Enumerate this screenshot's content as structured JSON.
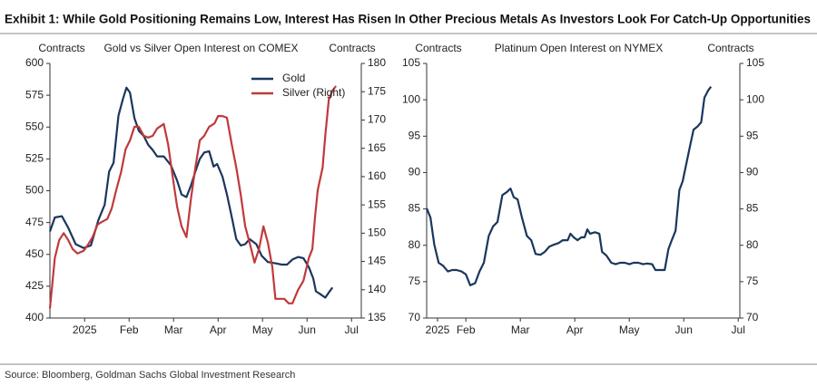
{
  "title": "Exhibit 1: While Gold Positioning Remains Low, Interest Has Risen In Other Precious Metals As Investors Look For Catch-Up Opportunities",
  "source": "Source: Bloomberg, Goldman Sachs Global Investment Research",
  "chart_data": [
    {
      "type": "line",
      "title": "Gold vs Silver Open Interest on COMEX",
      "y_label": "Contracts",
      "y2_label": "Contracts",
      "xlim": [
        -0.78,
        6.22
      ],
      "xticks": [
        {
          "value": 0,
          "label": "2025"
        },
        {
          "value": 1,
          "label": "Feb"
        },
        {
          "value": 2,
          "label": "Mar"
        },
        {
          "value": 3,
          "label": "Apr"
        },
        {
          "value": 4,
          "label": "May"
        },
        {
          "value": 5,
          "label": "Jun"
        },
        {
          "value": 6,
          "label": "Jul"
        }
      ],
      "ylim": [
        400,
        600
      ],
      "yticks": [
        400,
        425,
        450,
        475,
        500,
        525,
        550,
        575,
        600
      ],
      "y2lim": [
        135,
        180
      ],
      "y2ticks": [
        135,
        140,
        145,
        150,
        155,
        160,
        165,
        170,
        175,
        180
      ],
      "legend": "top",
      "series": [
        {
          "name": "Gold",
          "color": "#1b365d",
          "x": [
            -0.78,
            -0.67,
            -0.51,
            -0.37,
            -0.2,
            -0.02,
            0.14,
            0.31,
            0.45,
            0.55,
            0.65,
            0.76,
            0.86,
            0.94,
            1.02,
            1.12,
            1.22,
            1.33,
            1.43,
            1.53,
            1.63,
            1.78,
            1.94,
            2.08,
            2.18,
            2.29,
            2.39,
            2.49,
            2.59,
            2.69,
            2.8,
            2.9,
            2.98,
            3.1,
            3.2,
            3.31,
            3.41,
            3.51,
            3.61,
            3.71,
            3.86,
            3.98,
            4.12,
            4.29,
            4.43,
            4.55,
            4.67,
            4.8,
            4.92,
            5.04,
            5.14,
            5.2,
            5.29,
            5.41,
            5.49,
            5.57
          ],
          "values": [
            468,
            479,
            480,
            471,
            458,
            455,
            457,
            477,
            489,
            515,
            522,
            559,
            572,
            581,
            577,
            557,
            547,
            543,
            536,
            532,
            527,
            527,
            520,
            508,
            497,
            495,
            504,
            515,
            525,
            530,
            531,
            519,
            521,
            511,
            497,
            479,
            462,
            457,
            458,
            462,
            458,
            449,
            444,
            443,
            442,
            442,
            446,
            448,
            447,
            440,
            431,
            421,
            419,
            416,
            420,
            424
          ]
        },
        {
          "name": "Silver (Right)",
          "color": "#c0393b",
          "axis": "y2",
          "x": [
            -0.78,
            -0.67,
            -0.57,
            -0.47,
            -0.37,
            -0.27,
            -0.16,
            -0.02,
            0.08,
            0.18,
            0.29,
            0.39,
            0.51,
            0.61,
            0.71,
            0.82,
            0.92,
            1.02,
            1.12,
            1.22,
            1.33,
            1.43,
            1.53,
            1.63,
            1.78,
            1.88,
            1.98,
            2.08,
            2.18,
            2.29,
            2.39,
            2.49,
            2.59,
            2.69,
            2.8,
            2.92,
            3.0,
            3.1,
            3.2,
            3.31,
            3.41,
            3.51,
            3.61,
            3.71,
            3.82,
            3.92,
            4.02,
            4.12,
            4.22,
            4.29,
            4.39,
            4.49,
            4.59,
            4.67,
            4.8,
            4.92,
            5.04,
            5.12,
            5.18,
            5.24,
            5.35,
            5.41,
            5.49,
            5.57,
            5.65
          ],
          "values": [
            136.7,
            145.6,
            148.8,
            150,
            148.8,
            147.2,
            146.4,
            146.9,
            148,
            149.3,
            151.5,
            152,
            152.5,
            154.4,
            157.6,
            160.8,
            164.8,
            166.4,
            168.8,
            168.8,
            167.2,
            166.9,
            167.2,
            168.5,
            169.3,
            165.6,
            160,
            154.7,
            151.2,
            149.3,
            156,
            161.6,
            166.4,
            167.2,
            168.8,
            169.4,
            170.7,
            170.7,
            170.4,
            165.6,
            161.6,
            156.8,
            151.2,
            148.3,
            144.8,
            147.2,
            151.2,
            148.3,
            144,
            138.4,
            138.4,
            138.4,
            137.6,
            137.6,
            140,
            141.6,
            145.6,
            147.2,
            152.8,
            157.6,
            161.6,
            167.2,
            173.6,
            175.2,
            176
          ]
        }
      ]
    },
    {
      "type": "line",
      "title": "Platinum Open Interest on NYMEX",
      "y_label": "Contracts",
      "y2_label": "Contracts",
      "xlim": [
        0.28,
        6.03
      ],
      "xticks": [
        {
          "value": 0.48,
          "label": "2025"
        },
        {
          "value": 1,
          "label": "Feb"
        },
        {
          "value": 2,
          "label": "Mar"
        },
        {
          "value": 3,
          "label": "Apr"
        },
        {
          "value": 4,
          "label": "May"
        },
        {
          "value": 5,
          "label": "Jun"
        },
        {
          "value": 6,
          "label": "Jul"
        }
      ],
      "ylim": [
        70,
        105
      ],
      "yticks": [
        70,
        75,
        80,
        85,
        90,
        95,
        100,
        105
      ],
      "y2lim": [
        70,
        105
      ],
      "y2ticks": [
        70,
        75,
        80,
        85,
        90,
        95,
        100,
        105
      ],
      "series": [
        {
          "name": "Platinum",
          "color": "#1b365d",
          "x": [
            0.28,
            0.35,
            0.42,
            0.5,
            0.58,
            0.67,
            0.75,
            0.83,
            0.92,
            1.0,
            1.08,
            1.17,
            1.25,
            1.33,
            1.42,
            1.5,
            1.58,
            1.67,
            1.75,
            1.82,
            1.88,
            1.95,
            2.03,
            2.12,
            2.2,
            2.28,
            2.37,
            2.45,
            2.53,
            2.62,
            2.7,
            2.78,
            2.87,
            2.92,
            2.98,
            3.05,
            3.12,
            3.18,
            3.23,
            3.28,
            3.37,
            3.45,
            3.5,
            3.58,
            3.67,
            3.75,
            3.83,
            3.92,
            4.0,
            4.08,
            4.17,
            4.25,
            4.33,
            4.42,
            4.48,
            4.58,
            4.65,
            4.72,
            4.78,
            4.85,
            4.92,
            4.98,
            5.05,
            5.12,
            5.18,
            5.25,
            5.32,
            5.38,
            5.45,
            5.5
          ],
          "values": [
            85.1,
            83.8,
            80.1,
            77.6,
            77.2,
            76.4,
            76.6,
            76.6,
            76.4,
            76,
            74.5,
            74.8,
            76.4,
            77.6,
            81.3,
            82.6,
            83.2,
            86.9,
            87.3,
            87.8,
            86.6,
            86.3,
            83.8,
            81.3,
            80.7,
            78.8,
            78.7,
            79.1,
            79.8,
            80.1,
            80.3,
            80.7,
            80.7,
            81.6,
            81.1,
            80.7,
            81.1,
            81.1,
            82.2,
            81.6,
            81.8,
            81.6,
            79.1,
            78.6,
            77.6,
            77.4,
            77.6,
            77.6,
            77.4,
            77.6,
            77.6,
            77.4,
            77.5,
            77.4,
            76.6,
            76.6,
            76.6,
            79.5,
            80.7,
            82,
            87.6,
            88.8,
            91.3,
            93.8,
            95.9,
            96.3,
            96.9,
            100.3,
            101.3,
            101.8
          ]
        }
      ]
    }
  ]
}
